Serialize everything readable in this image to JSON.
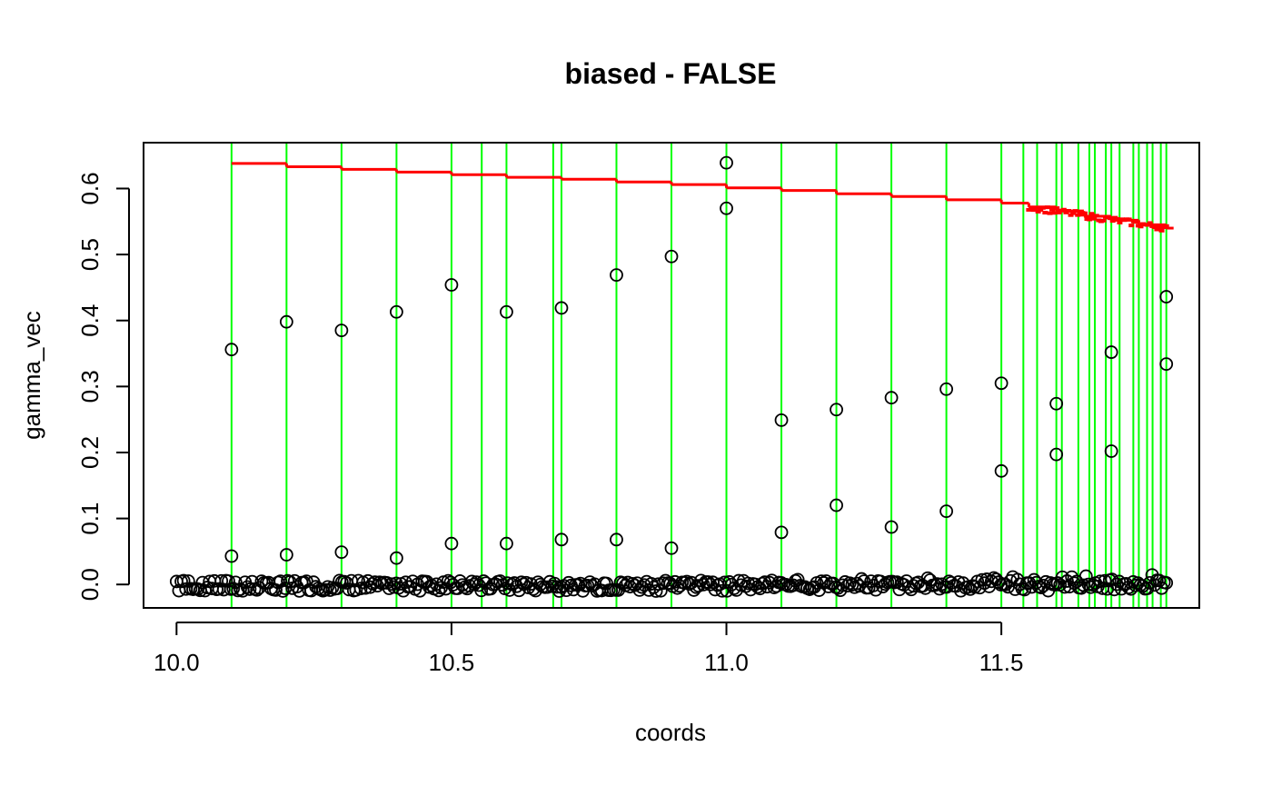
{
  "chart_data": {
    "type": "scatter",
    "title": "biased - FALSE",
    "xlabel": "coords",
    "ylabel": "gamma_vec",
    "xlim": [
      9.94,
      11.86
    ],
    "ylim": [
      -0.0355,
      0.6695
    ],
    "xticks": [
      10.0,
      10.5,
      11.0,
      11.5
    ],
    "xtick_labels": [
      "10.0",
      "10.5",
      "11.0",
      "11.5"
    ],
    "yticks": [
      0.0,
      0.1,
      0.2,
      0.3,
      0.4,
      0.5,
      0.6
    ],
    "ytick_labels": [
      "0.0",
      "0.1",
      "0.2",
      "0.3",
      "0.4",
      "0.5",
      "0.6"
    ],
    "grid": false,
    "colors": {
      "points": "#000000",
      "step_line": "#ff0000",
      "vlines": "#00ff00"
    },
    "points_outliers": [
      [
        10.1,
        0.356
      ],
      [
        10.1,
        0.043
      ],
      [
        10.2,
        0.398
      ],
      [
        10.2,
        0.045
      ],
      [
        10.3,
        0.385
      ],
      [
        10.3,
        0.049
      ],
      [
        10.4,
        0.413
      ],
      [
        10.4,
        0.04
      ],
      [
        10.5,
        0.454
      ],
      [
        10.5,
        0.062
      ],
      [
        10.6,
        0.413
      ],
      [
        10.6,
        0.062
      ],
      [
        10.7,
        0.419
      ],
      [
        10.7,
        0.068
      ],
      [
        10.8,
        0.469
      ],
      [
        10.8,
        0.068
      ],
      [
        10.9,
        0.497
      ],
      [
        10.9,
        0.055
      ],
      [
        11.0,
        0.639
      ],
      [
        11.0,
        0.57
      ],
      [
        11.1,
        0.249
      ],
      [
        11.1,
        0.079
      ],
      [
        11.2,
        0.265
      ],
      [
        11.2,
        0.12
      ],
      [
        11.3,
        0.283
      ],
      [
        11.3,
        0.087
      ],
      [
        11.4,
        0.296
      ],
      [
        11.4,
        0.111
      ],
      [
        11.5,
        0.305
      ],
      [
        11.5,
        0.172
      ],
      [
        11.6,
        0.274
      ],
      [
        11.6,
        0.197
      ],
      [
        11.7,
        0.352
      ],
      [
        11.7,
        0.202
      ],
      [
        11.8,
        0.436
      ],
      [
        11.8,
        0.334
      ]
    ],
    "points_baseline_band": {
      "x_from": 10.0,
      "x_to": 11.8,
      "y_min": -0.01,
      "y_max": 0.015
    },
    "step_line": [
      [
        10.1,
        0.638
      ],
      [
        10.2,
        0.633
      ],
      [
        10.3,
        0.629
      ],
      [
        10.4,
        0.625
      ],
      [
        10.5,
        0.621
      ],
      [
        10.6,
        0.617
      ],
      [
        10.7,
        0.614
      ],
      [
        10.8,
        0.61
      ],
      [
        10.9,
        0.606
      ],
      [
        11.0,
        0.601
      ],
      [
        11.1,
        0.597
      ],
      [
        11.2,
        0.592
      ],
      [
        11.3,
        0.588
      ],
      [
        11.4,
        0.583
      ],
      [
        11.5,
        0.578
      ],
      [
        11.55,
        0.572
      ],
      [
        11.6,
        0.566
      ],
      [
        11.65,
        0.558
      ],
      [
        11.7,
        0.552
      ],
      [
        11.75,
        0.545
      ],
      [
        11.8,
        0.54
      ]
    ],
    "vlines": [
      10.1,
      10.2,
      10.3,
      10.4,
      10.5,
      10.555,
      10.6,
      10.685,
      10.7,
      10.8,
      10.9,
      11.0,
      11.1,
      11.2,
      11.3,
      11.4,
      11.5,
      11.54,
      11.565,
      11.6,
      11.61,
      11.64,
      11.66,
      11.67,
      11.69,
      11.7,
      11.715,
      11.74,
      11.75,
      11.765,
      11.775,
      11.79,
      11.8
    ]
  }
}
